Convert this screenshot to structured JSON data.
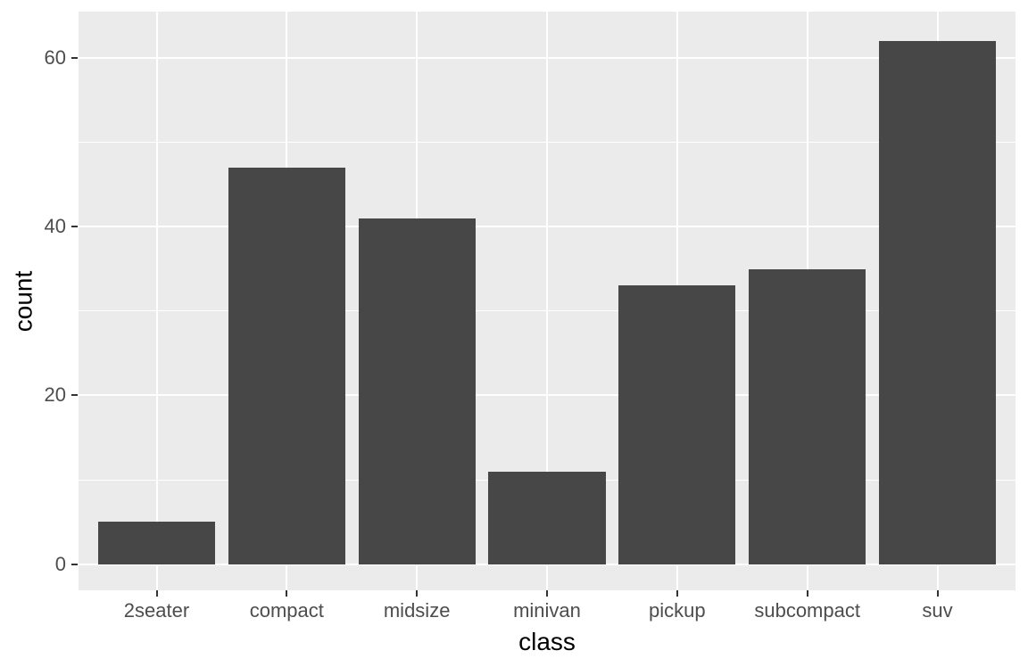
{
  "chart_data": {
    "type": "bar",
    "title": "",
    "xlabel": "class",
    "ylabel": "count",
    "categories": [
      "2seater",
      "compact",
      "midsize",
      "minivan",
      "pickup",
      "subcompact",
      "suv"
    ],
    "values": [
      5,
      47,
      41,
      11,
      33,
      35,
      62
    ],
    "y_major_ticks": [
      0,
      20,
      40,
      60
    ],
    "y_minor_ticks": [
      10,
      30,
      50
    ],
    "ylim": [
      -3.1,
      65.5
    ],
    "x_units_range": [
      0.4,
      7.6
    ],
    "bar_rel_width": 0.9,
    "grid": "on",
    "legend": "none",
    "style": {
      "bar_fill": "#474747",
      "panel_bg": "#EBEBEB",
      "grid_color": "#FFFFFF",
      "tick_label_color": "#4D4D4D",
      "axis_title_color": "#000000",
      "tick_mark_color": "#333333",
      "figure_bg": "#FFFFFF"
    }
  }
}
